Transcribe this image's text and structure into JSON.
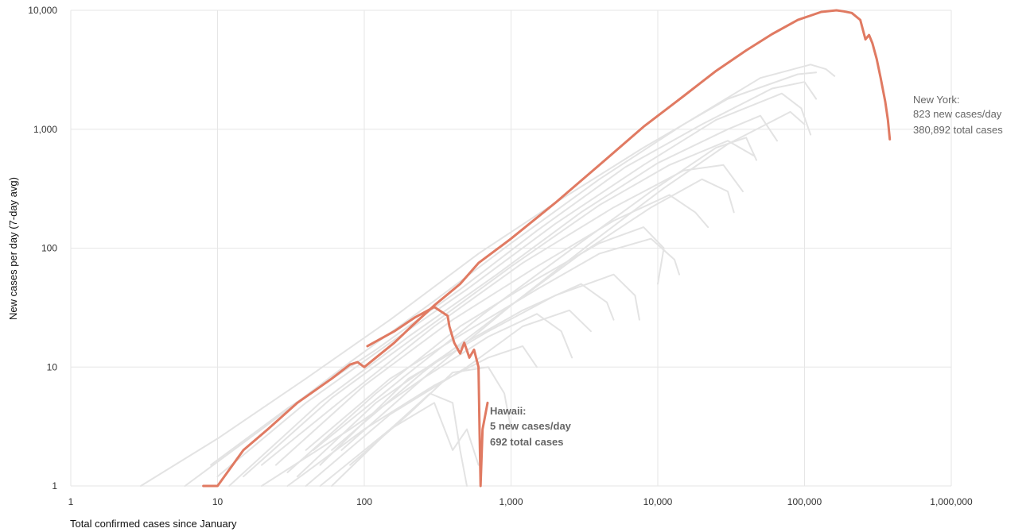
{
  "chart_data": {
    "type": "line",
    "xscale": "log",
    "yscale": "log",
    "xlabel": "Total confirmed cases since January",
    "ylabel": "New cases per day (7-day avg)",
    "xlim": [
      1,
      1000000
    ],
    "ylim": [
      1,
      10000
    ],
    "grid": true,
    "x_ticks": [
      {
        "value": 1,
        "label": "1"
      },
      {
        "value": 10,
        "label": "10"
      },
      {
        "value": 100,
        "label": "100"
      },
      {
        "value": 1000,
        "label": "1,000"
      },
      {
        "value": 10000,
        "label": "10,000"
      },
      {
        "value": 100000,
        "label": "100,000"
      },
      {
        "value": 1000000,
        "label": "1,000,000"
      }
    ],
    "y_ticks": [
      {
        "value": 1,
        "label": "1"
      },
      {
        "value": 10,
        "label": "10"
      },
      {
        "value": 100,
        "label": "100"
      },
      {
        "value": 1000,
        "label": "1,000"
      },
      {
        "value": 10000,
        "label": "10,000"
      }
    ],
    "highlight_color": "#e07a62",
    "background_color": "#e3e3e3",
    "series": [
      {
        "name": "New York",
        "highlight": true,
        "points": [
          [
            8,
            1
          ],
          [
            10,
            1
          ],
          [
            15,
            2
          ],
          [
            22,
            3
          ],
          [
            35,
            5
          ],
          [
            60,
            8
          ],
          [
            80,
            10.5
          ],
          [
            90,
            11
          ],
          [
            100,
            10
          ],
          [
            120,
            12
          ],
          [
            160,
            16
          ],
          [
            210,
            22
          ],
          [
            300,
            33
          ],
          [
            450,
            50
          ],
          [
            600,
            75
          ],
          [
            1000,
            120
          ],
          [
            2000,
            240
          ],
          [
            4000,
            500
          ],
          [
            8000,
            1050
          ],
          [
            15000,
            1900
          ],
          [
            25000,
            3100
          ],
          [
            40000,
            4600
          ],
          [
            60000,
            6300
          ],
          [
            90000,
            8300
          ],
          [
            130000,
            9700
          ],
          [
            165000,
            10000
          ],
          [
            185000,
            9800
          ],
          [
            210000,
            9500
          ],
          [
            240000,
            8300
          ],
          [
            260000,
            5700
          ],
          [
            275000,
            6200
          ],
          [
            290000,
            5300
          ],
          [
            310000,
            3900
          ],
          [
            330000,
            2700
          ],
          [
            355000,
            1700
          ],
          [
            370000,
            1200
          ],
          [
            380892,
            823
          ]
        ]
      },
      {
        "name": "Hawaii",
        "highlight": true,
        "points": [
          [
            105,
            15
          ],
          [
            160,
            20
          ],
          [
            220,
            26
          ],
          [
            300,
            32
          ],
          [
            370,
            27
          ],
          [
            380,
            22
          ],
          [
            410,
            16
          ],
          [
            450,
            13
          ],
          [
            480,
            16
          ],
          [
            520,
            12
          ],
          [
            560,
            14
          ],
          [
            600,
            10
          ],
          [
            610,
            3
          ],
          [
            620,
            1
          ],
          [
            640,
            3
          ],
          [
            692,
            5
          ]
        ]
      },
      {
        "name": "",
        "highlight": false,
        "points": [
          [
            3,
            1
          ],
          [
            10,
            2.5
          ],
          [
            40,
            8
          ],
          [
            150,
            25
          ],
          [
            600,
            90
          ],
          [
            2000,
            240
          ],
          [
            8000,
            700
          ],
          [
            30000,
            1800
          ],
          [
            90000,
            2900
          ],
          [
            120000,
            3000
          ]
        ]
      },
      {
        "name": "",
        "highlight": false,
        "points": [
          [
            6,
            1
          ],
          [
            20,
            3
          ],
          [
            80,
            11
          ],
          [
            300,
            36
          ],
          [
            1000,
            110
          ],
          [
            4000,
            380
          ],
          [
            15000,
            1100
          ],
          [
            50000,
            2700
          ],
          [
            110000,
            3500
          ],
          [
            140000,
            3200
          ],
          [
            160000,
            2800
          ]
        ]
      },
      {
        "name": "",
        "highlight": false,
        "points": [
          [
            9,
            1.5
          ],
          [
            30,
            4.5
          ],
          [
            120,
            14
          ],
          [
            450,
            45
          ],
          [
            1500,
            140
          ],
          [
            6000,
            480
          ],
          [
            20000,
            1100
          ],
          [
            60000,
            2200
          ],
          [
            100000,
            2500
          ],
          [
            120000,
            1800
          ]
        ]
      },
      {
        "name": "",
        "highlight": false,
        "points": [
          [
            10,
            1.2
          ],
          [
            40,
            5
          ],
          [
            150,
            16
          ],
          [
            500,
            45
          ],
          [
            2000,
            160
          ],
          [
            8000,
            500
          ],
          [
            25000,
            1200
          ],
          [
            70000,
            2000
          ],
          [
            95000,
            1500
          ],
          [
            110000,
            900
          ]
        ]
      },
      {
        "name": "",
        "highlight": false,
        "points": [
          [
            12,
            1
          ],
          [
            50,
            5
          ],
          [
            200,
            18
          ],
          [
            800,
            60
          ],
          [
            3000,
            200
          ],
          [
            10000,
            520
          ],
          [
            30000,
            1000
          ],
          [
            50000,
            1300
          ],
          [
            65000,
            800
          ]
        ]
      },
      {
        "name": "",
        "highlight": false,
        "points": [
          [
            15,
            1.2
          ],
          [
            60,
            5.5
          ],
          [
            250,
            20
          ],
          [
            1000,
            70
          ],
          [
            4000,
            230
          ],
          [
            12000,
            500
          ],
          [
            30000,
            800
          ],
          [
            45000,
            600
          ]
        ]
      },
      {
        "name": "",
        "highlight": false,
        "points": [
          [
            20,
            1.5
          ],
          [
            80,
            6
          ],
          [
            300,
            22
          ],
          [
            1200,
            75
          ],
          [
            5000,
            220
          ],
          [
            15000,
            450
          ],
          [
            28000,
            500
          ],
          [
            38000,
            300
          ]
        ]
      },
      {
        "name": "",
        "highlight": false,
        "points": [
          [
            25,
            1.5
          ],
          [
            100,
            7
          ],
          [
            400,
            25
          ],
          [
            1500,
            70
          ],
          [
            5000,
            170
          ],
          [
            12000,
            280
          ],
          [
            18000,
            200
          ],
          [
            22000,
            150
          ]
        ]
      },
      {
        "name": "",
        "highlight": false,
        "points": [
          [
            30,
            1.3
          ],
          [
            120,
            6
          ],
          [
            450,
            22
          ],
          [
            1500,
            55
          ],
          [
            4000,
            110
          ],
          [
            8000,
            150
          ],
          [
            11000,
            100
          ],
          [
            10000,
            50
          ]
        ]
      },
      {
        "name": "",
        "highlight": false,
        "points": [
          [
            40,
            2
          ],
          [
            150,
            8
          ],
          [
            500,
            20
          ],
          [
            1500,
            45
          ],
          [
            4000,
            90
          ],
          [
            9000,
            120
          ],
          [
            13000,
            80
          ],
          [
            14000,
            60
          ]
        ]
      },
      {
        "name": "",
        "highlight": false,
        "points": [
          [
            50,
            1.5
          ],
          [
            200,
            8
          ],
          [
            700,
            20
          ],
          [
            2000,
            40
          ],
          [
            5000,
            60
          ],
          [
            7000,
            40
          ],
          [
            7500,
            25
          ]
        ]
      },
      {
        "name": "",
        "highlight": false,
        "points": [
          [
            35,
            1.2
          ],
          [
            120,
            5
          ],
          [
            400,
            14
          ],
          [
            1200,
            30
          ],
          [
            3000,
            50
          ],
          [
            4500,
            35
          ],
          [
            5000,
            25
          ]
        ]
      },
      {
        "name": "",
        "highlight": false,
        "points": [
          [
            40,
            1
          ],
          [
            150,
            4
          ],
          [
            500,
            10
          ],
          [
            1200,
            22
          ],
          [
            2500,
            30
          ],
          [
            3500,
            20
          ]
        ]
      },
      {
        "name": "",
        "highlight": false,
        "points": [
          [
            30,
            1
          ],
          [
            100,
            3
          ],
          [
            300,
            7
          ],
          [
            700,
            12
          ],
          [
            1200,
            15
          ],
          [
            1500,
            10
          ]
        ]
      },
      {
        "name": "",
        "highlight": false,
        "points": [
          [
            50,
            1
          ],
          [
            150,
            3
          ],
          [
            300,
            5
          ],
          [
            400,
            2
          ],
          [
            500,
            3
          ],
          [
            600,
            1.5
          ]
        ]
      },
      {
        "name": "",
        "highlight": false,
        "points": [
          [
            60,
            1
          ],
          [
            150,
            3
          ],
          [
            280,
            6
          ],
          [
            400,
            5
          ],
          [
            450,
            2
          ],
          [
            500,
            1
          ]
        ]
      },
      {
        "name": "",
        "highlight": false,
        "points": [
          [
            80,
            1.5
          ],
          [
            200,
            4
          ],
          [
            400,
            9
          ],
          [
            700,
            10
          ],
          [
            900,
            6
          ],
          [
            1000,
            3
          ]
        ]
      },
      {
        "name": "",
        "highlight": false,
        "points": [
          [
            20,
            1
          ],
          [
            80,
            3
          ],
          [
            250,
            8
          ],
          [
            700,
            18
          ],
          [
            1500,
            28
          ],
          [
            2200,
            20
          ],
          [
            2600,
            12
          ]
        ]
      },
      {
        "name": "",
        "highlight": false,
        "points": [
          [
            60,
            2
          ],
          [
            250,
            9
          ],
          [
            900,
            30
          ],
          [
            3000,
            90
          ],
          [
            9000,
            220
          ],
          [
            20000,
            380
          ],
          [
            30000,
            300
          ],
          [
            33000,
            200
          ]
        ]
      },
      {
        "name": "",
        "highlight": false,
        "points": [
          [
            45,
            2
          ],
          [
            180,
            8
          ],
          [
            650,
            28
          ],
          [
            2500,
            95
          ],
          [
            9000,
            300
          ],
          [
            25000,
            700
          ],
          [
            40000,
            850
          ],
          [
            47000,
            550
          ]
        ]
      },
      {
        "name": "",
        "highlight": false,
        "points": [
          [
            70,
            2
          ],
          [
            280,
            9
          ],
          [
            1000,
            33
          ],
          [
            3500,
            110
          ],
          [
            11000,
            320
          ],
          [
            30000,
            750
          ],
          [
            80000,
            1400
          ],
          [
            100000,
            1100
          ]
        ]
      }
    ],
    "annotations": [
      {
        "series": "New York",
        "lines": [
          "New York:",
          "823 new cases/day",
          "380,892 total cases"
        ]
      },
      {
        "series": "Hawaii",
        "lines": [
          "Hawaii:",
          "5 new cases/day",
          "692 total cases"
        ]
      }
    ]
  }
}
